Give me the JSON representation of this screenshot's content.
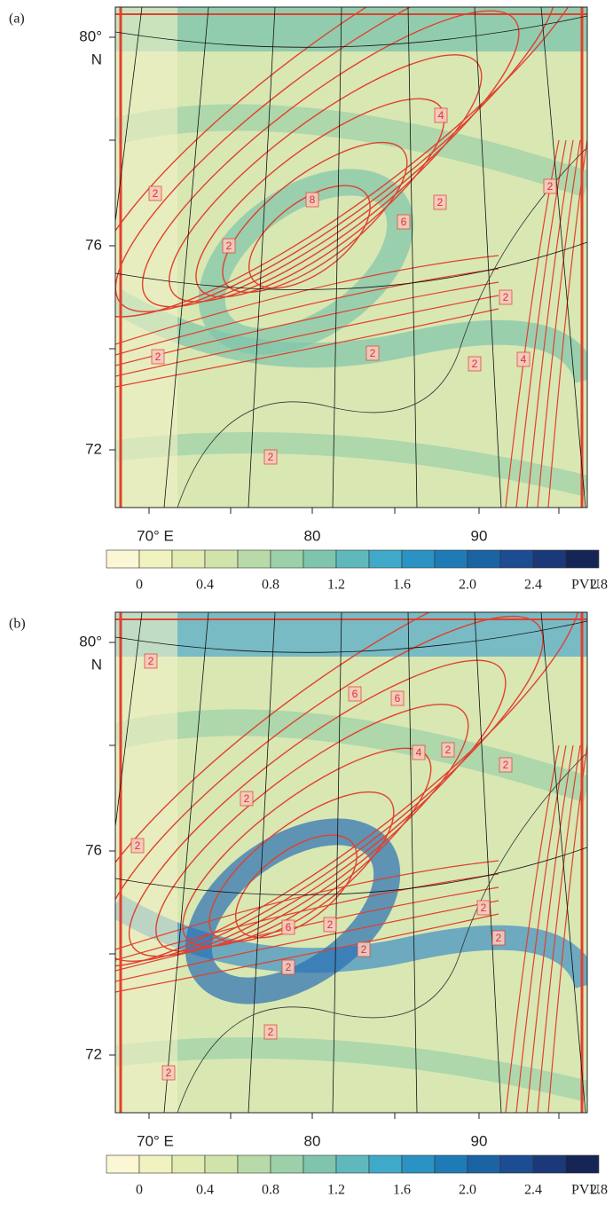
{
  "panels": [
    {
      "label": "(a)",
      "lat_labels": [
        "80°",
        "N",
        "76",
        "72"
      ],
      "lon_labels": [
        "70° E",
        "80",
        "90"
      ],
      "contour_labels": [
        "2",
        "2",
        "8",
        "6",
        "2",
        "4",
        "2",
        "2",
        "2",
        "2",
        "4",
        "2",
        "2"
      ]
    },
    {
      "label": "(b)",
      "lat_labels": [
        "80°",
        "N",
        "76",
        "72"
      ],
      "lon_labels": [
        "70° E",
        "80",
        "90"
      ],
      "contour_labels": [
        "2",
        "6",
        "6",
        "4",
        "2",
        "2",
        "2",
        "2",
        "6",
        "2",
        "2",
        "2",
        "2",
        "2",
        "2",
        "2"
      ]
    }
  ],
  "colorbar": {
    "colors": [
      "#fbf7d4",
      "#f0f2c0",
      "#e1ebb2",
      "#cfe3ab",
      "#b8daa8",
      "#9bd0a8",
      "#7fc5ad",
      "#5fb9bc",
      "#3fa9c9",
      "#2a93c4",
      "#1f7bb6",
      "#1c63a4",
      "#1c4c92",
      "#1b3878",
      "#142556"
    ],
    "tick_labels": [
      "0",
      "0.4",
      "0.8",
      "1.2",
      "1.6",
      "2.0",
      "2.4",
      "2.8"
    ],
    "unit": "PVU"
  }
}
